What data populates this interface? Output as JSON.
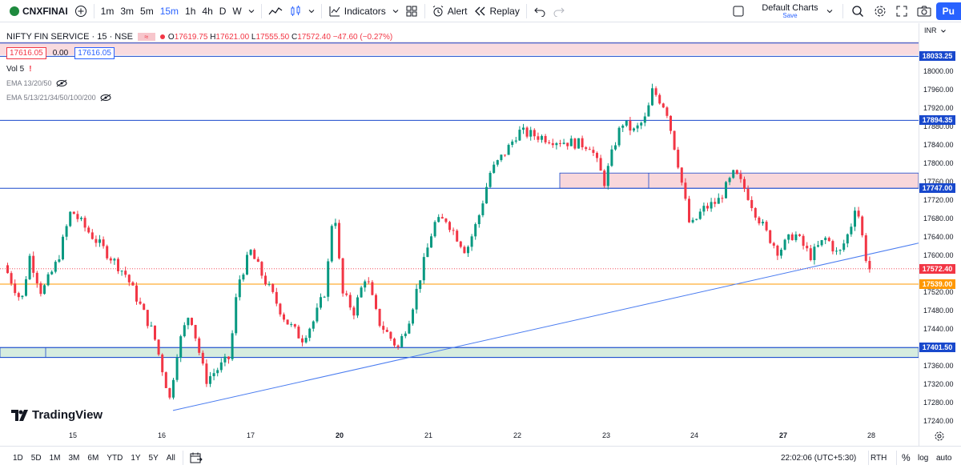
{
  "toolbar": {
    "symbol": "CNXFINAI",
    "intervals": [
      "1m",
      "3m",
      "5m",
      "15m",
      "1h",
      "4h",
      "D",
      "W"
    ],
    "active_interval": "15m",
    "indicators_label": "Indicators",
    "alert_label": "Alert",
    "replay_label": "Replay",
    "layout_name": "Default Charts",
    "layout_status": "Save",
    "publish_label": "Pu"
  },
  "legend": {
    "title": "NIFTY FIN SERVICE · 15 · NSE",
    "o_label": "O",
    "o": "17619.75",
    "h_label": "H",
    "h": "17621.00",
    "l_label": "L",
    "l": "17555.50",
    "c_label": "C",
    "c": "17572.40",
    "change": "−47.60 (−0.27%)",
    "sell_price": "17616.05",
    "spread": "0.00",
    "buy_price": "17616.05",
    "vol": "Vol 5",
    "ema1": "EMA 13/20/50",
    "ema2": "EMA 5/13/21/34/50/100/200"
  },
  "price_axis": {
    "currency": "INR",
    "ticks": [
      "18000.00",
      "17960.00",
      "17920.00",
      "17880.00",
      "17840.00",
      "17800.00",
      "17760.00",
      "17720.00",
      "17680.00",
      "17640.00",
      "17600.00",
      "17520.00",
      "17480.00",
      "17440.00",
      "17400.00",
      "17360.00",
      "17320.00",
      "17280.00",
      "17240.00"
    ],
    "tags": [
      {
        "value": "18033.25",
        "color": "#1848cc"
      },
      {
        "value": "17894.35",
        "color": "#1848cc"
      },
      {
        "value": "17747.00",
        "color": "#1848cc"
      },
      {
        "value": "17572.40",
        "color": "#f23645"
      },
      {
        "value": "17539.00",
        "color": "#ff9800"
      },
      {
        "value": "17401.50",
        "color": "#1848cc"
      }
    ]
  },
  "time_axis": [
    "15",
    "16",
    "17",
    "20",
    "21",
    "22",
    "23",
    "24",
    "27",
    "28"
  ],
  "watermark": "TradingView",
  "bottom": {
    "ranges": [
      "1D",
      "5D",
      "1M",
      "3M",
      "6M",
      "YTD",
      "1Y",
      "5Y",
      "All"
    ],
    "clock": "22:02:06 (UTC+5:30)",
    "session": "RTH",
    "pct": "%",
    "log": "log",
    "auto": "auto"
  },
  "colors": {
    "up": "#089981",
    "down": "#f23645",
    "hline": "#1848cc",
    "orange": "#ff9800",
    "accent": "#2962ff"
  }
}
